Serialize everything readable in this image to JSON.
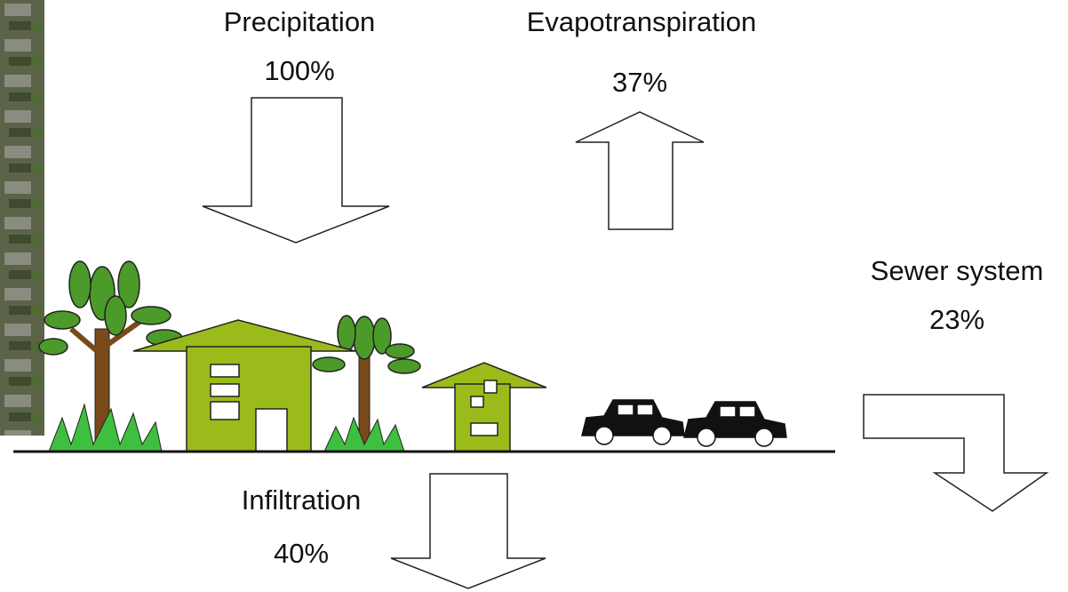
{
  "flows": [
    {
      "label": "Precipitation",
      "value": "100%"
    },
    {
      "label": "Evapotranspiration",
      "value": "37%"
    },
    {
      "label": "Sewer system",
      "value": "23%"
    },
    {
      "label": "Infiltration",
      "value": "40%"
    }
  ]
}
